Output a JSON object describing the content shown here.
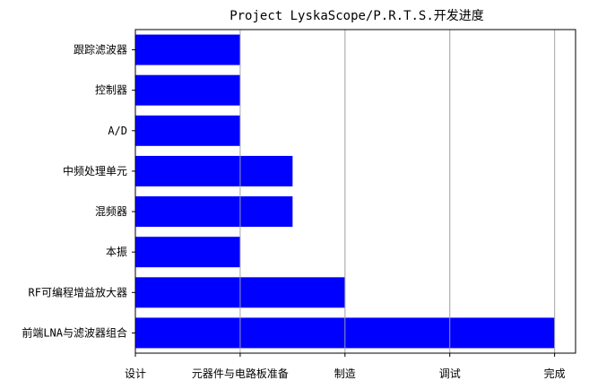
{
  "chart_data": {
    "type": "bar",
    "orientation": "horizontal",
    "title": "Project LyskaScope/P.R.T.S.开发进度",
    "xlabel": "",
    "ylabel": "",
    "categories": [
      "跟踪滤波器",
      "控制器",
      "A/D",
      "中频处理单元",
      "混频器",
      "本振",
      "RF可编程增益放大器",
      "前端LNA与滤波器组合"
    ],
    "values": [
      1,
      1,
      1,
      1.5,
      1.5,
      1,
      2,
      4
    ],
    "x_tick_values": [
      0,
      1,
      2,
      3,
      4
    ],
    "x_tick_labels": [
      "设计",
      "元器件与电路板准备",
      "制造",
      "调试",
      "完成"
    ],
    "xlim": [
      0,
      4.2
    ],
    "bar_color": "#0000ff",
    "grid": "vertical",
    "legend": "none"
  }
}
